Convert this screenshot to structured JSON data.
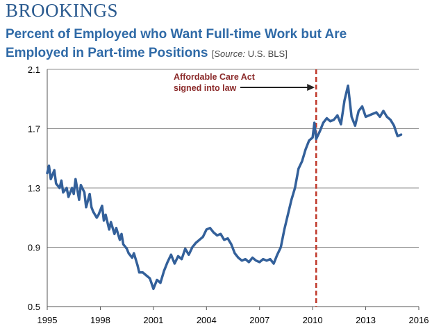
{
  "header": {
    "brand": "BROOKINGS",
    "title_line1": "Percent of Employed who Want Full-time Work but Are",
    "title_line2": "Employed in Part-time Positions",
    "source_open": "[",
    "source_label": "Source:",
    "source_value": " U.S. BLS]"
  },
  "annotation": {
    "line1": "Affordable Care Act",
    "line2": "signed into law",
    "year": 2010.2
  },
  "colors": {
    "line": "#33609a",
    "marker": "#c0392b",
    "arrow": "#222222",
    "grid": "#8c8c8c"
  },
  "chart_data": {
    "type": "line",
    "title": "Percent of Employed who Want Full-time Work but Are Employed in Part-time Positions",
    "xlabel": "",
    "ylabel": "",
    "xlim": [
      1995,
      2016
    ],
    "ylim": [
      0.5,
      2.1
    ],
    "x_ticks": [
      1995,
      1998,
      2001,
      2004,
      2007,
      2010,
      2013,
      2016
    ],
    "x_tick_labels": [
      "1995",
      "1998",
      "2001",
      "2004",
      "2007",
      "2010",
      "2013",
      "2016"
    ],
    "y_ticks": [
      0.5,
      0.9,
      1.3,
      1.7,
      2.1
    ],
    "y_tick_labels": [
      "0.5",
      "0.9",
      "1.3",
      "1.7",
      "2.1"
    ],
    "grid": true,
    "series": [
      {
        "x": [
          1995.0,
          1995.1,
          1995.2,
          1995.4,
          1995.5,
          1995.7,
          1995.8,
          1995.9,
          1996.1,
          1996.2,
          1996.4,
          1996.5,
          1996.6,
          1996.8,
          1996.9,
          1997.1,
          1997.2,
          1997.4,
          1997.5,
          1997.6,
          1997.8,
          1997.9,
          1998.1,
          1998.2,
          1998.3,
          1998.5,
          1998.6,
          1998.8,
          1998.9,
          1999.1,
          1999.2,
          1999.3,
          1999.5,
          1999.6,
          1999.8,
          1999.9,
          2000.1,
          2000.2,
          2000.4,
          2000.6,
          2000.8,
          2001.0,
          2001.2,
          2001.4,
          2001.6,
          2001.8,
          2002.0,
          2002.2,
          2002.4,
          2002.6,
          2002.8,
          2003.0,
          2003.2,
          2003.4,
          2003.6,
          2003.8,
          2004.0,
          2004.2,
          2004.4,
          2004.6,
          2004.8,
          2005.0,
          2005.2,
          2005.4,
          2005.6,
          2005.8,
          2006.0,
          2006.2,
          2006.4,
          2006.6,
          2006.8,
          2007.0,
          2007.2,
          2007.4,
          2007.6,
          2007.8,
          2008.0,
          2008.2,
          2008.4,
          2008.6,
          2008.8,
          2009.0,
          2009.2,
          2009.4,
          2009.6,
          2009.8,
          2010.0,
          2010.1,
          2010.2,
          2010.4,
          2010.6,
          2010.8,
          2011.0,
          2011.2,
          2011.4,
          2011.6,
          2011.8,
          2012.0,
          2012.2,
          2012.4,
          2012.6,
          2012.8,
          2013.0,
          2013.2,
          2013.4,
          2013.6,
          2013.8,
          2014.0,
          2014.2,
          2014.4,
          2014.6,
          2014.8,
          2015.0
        ],
        "values": [
          1.4,
          1.45,
          1.36,
          1.42,
          1.33,
          1.3,
          1.35,
          1.27,
          1.3,
          1.24,
          1.3,
          1.26,
          1.36,
          1.22,
          1.32,
          1.27,
          1.17,
          1.26,
          1.17,
          1.14,
          1.1,
          1.12,
          1.18,
          1.08,
          1.12,
          1.02,
          1.07,
          0.99,
          1.03,
          0.95,
          0.99,
          0.92,
          0.89,
          0.86,
          0.83,
          0.86,
          0.78,
          0.73,
          0.73,
          0.71,
          0.69,
          0.62,
          0.68,
          0.66,
          0.74,
          0.8,
          0.85,
          0.79,
          0.84,
          0.82,
          0.89,
          0.85,
          0.9,
          0.93,
          0.95,
          0.97,
          1.02,
          1.03,
          1.0,
          0.98,
          0.99,
          0.95,
          0.96,
          0.92,
          0.86,
          0.83,
          0.81,
          0.82,
          0.8,
          0.83,
          0.81,
          0.8,
          0.82,
          0.81,
          0.82,
          0.79,
          0.85,
          0.9,
          1.02,
          1.12,
          1.22,
          1.3,
          1.43,
          1.48,
          1.56,
          1.62,
          1.64,
          1.74,
          1.63,
          1.68,
          1.74,
          1.77,
          1.75,
          1.76,
          1.79,
          1.73,
          1.89,
          1.99,
          1.78,
          1.72,
          1.82,
          1.85,
          1.78,
          1.79,
          1.8,
          1.81,
          1.78,
          1.82,
          1.78,
          1.76,
          1.72,
          1.65,
          1.66
        ]
      }
    ]
  }
}
